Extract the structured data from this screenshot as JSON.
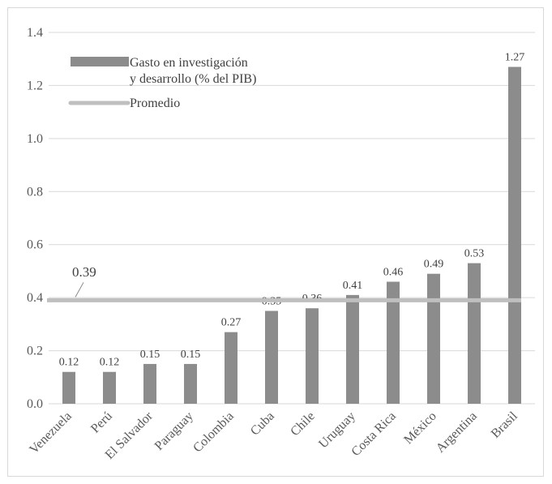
{
  "chart_data": {
    "type": "bar",
    "categories": [
      "Venezuela",
      "Perú",
      "El Salvador",
      "Paraguay",
      "Colombia",
      "Cuba",
      "Chile",
      "Uruguay",
      "Costa Rica",
      "México",
      "Argentina",
      "Brasil"
    ],
    "series": [
      {
        "name": "Gasto en investigación y desarrollo (% del PIB)",
        "type": "bar",
        "values": [
          0.12,
          0.12,
          0.15,
          0.15,
          0.27,
          0.35,
          0.36,
          0.41,
          0.46,
          0.49,
          0.53,
          1.27
        ],
        "labels": [
          "0.12",
          "0.12",
          "0.15",
          "0.15",
          "0.27",
          "0.35",
          "0.36",
          "0.41",
          "0.46",
          "0.49",
          "0.53",
          "1.27"
        ],
        "color": "#8c8c8c"
      },
      {
        "name": "Promedio",
        "type": "line",
        "value": 0.39,
        "label": "0.39",
        "color": "#bfbfbf"
      }
    ],
    "legend_lines": [
      "Gasto en investigación",
      "y desarrollo (% del PIB)",
      "Promedio"
    ],
    "y_ticks": [
      "0.0",
      "0.2",
      "0.4",
      "0.6",
      "0.8",
      "1.0",
      "1.2",
      "1.4"
    ],
    "ylim": [
      0,
      1.4
    ],
    "grid": true,
    "legend_position": "top-left"
  }
}
